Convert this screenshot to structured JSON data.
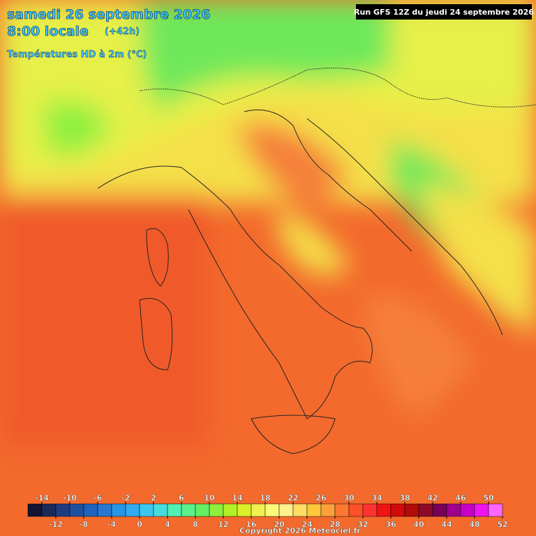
{
  "header": {
    "date": "samedi 26 septembre 2026",
    "time": "8:00 locale",
    "offset": "(+42h)",
    "variable": "Températures HD à 2m (°C)",
    "run": "Run GFS 12Z du jeudi 24 septembre 2026"
  },
  "legend": {
    "ticks": [
      -14,
      -12,
      -10,
      -8,
      -6,
      -4,
      -2,
      0,
      2,
      4,
      6,
      8,
      10,
      12,
      14,
      16,
      18,
      20,
      22,
      24,
      26,
      28,
      30,
      32,
      34,
      36,
      38,
      40,
      42,
      44,
      46,
      48,
      50,
      52
    ],
    "colors": [
      "#141432",
      "#1c2a5a",
      "#1e3c82",
      "#1e50a0",
      "#1e64be",
      "#2878d2",
      "#2896e6",
      "#32aaf0",
      "#3cc8f0",
      "#46dcdc",
      "#50f0b4",
      "#5af08c",
      "#64f064",
      "#8cf03c",
      "#b4f028",
      "#dcf028",
      "#f0f050",
      "#fafa78",
      "#fff08c",
      "#ffdc64",
      "#ffc83c",
      "#ffa03c",
      "#ff7832",
      "#ff5028",
      "#ff3232",
      "#f01414",
      "#d20a0a",
      "#b40a0a",
      "#8c0a28",
      "#78005a",
      "#a0008c",
      "#c800c8",
      "#f014f0",
      "#ff64ff"
    ]
  },
  "footer": {
    "copyright": "Copyright 2026 Meteociel.fr"
  }
}
